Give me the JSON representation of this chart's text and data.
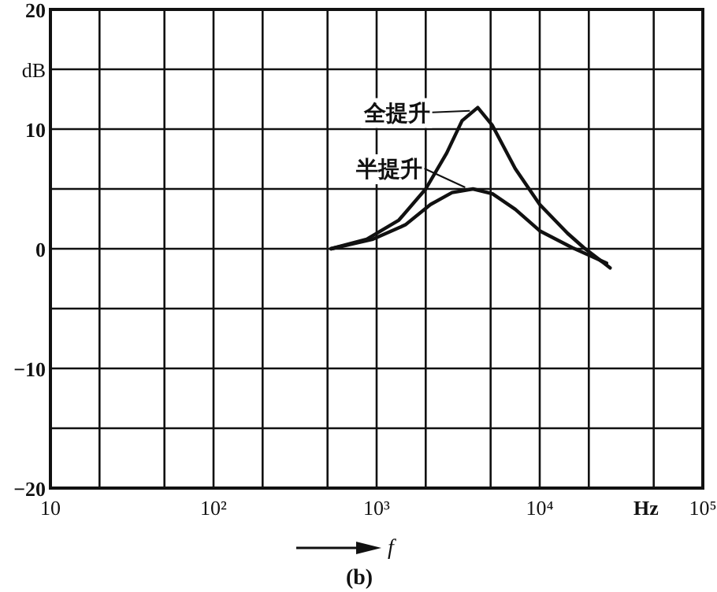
{
  "chart_data": {
    "type": "line",
    "ylabel": "dB",
    "xlabel": "Hz",
    "log": "x",
    "grid": true,
    "legend": "top",
    "line_style": "solid",
    "xlim": [
      10,
      100000
    ],
    "ylim": [
      -20,
      20
    ],
    "xticks": [
      {
        "value": 10,
        "label": "10"
      },
      {
        "value": 20,
        "label": null
      },
      {
        "value": 50,
        "label": null
      },
      {
        "value": 100,
        "label": "10²"
      },
      {
        "value": 200,
        "label": null
      },
      {
        "value": 500,
        "label": null
      },
      {
        "value": 1000,
        "label": "10³"
      },
      {
        "value": 2000,
        "label": null
      },
      {
        "value": 5000,
        "label": null
      },
      {
        "value": 10000,
        "label": "10⁴"
      },
      {
        "value": 20000,
        "label": null
      },
      {
        "value": 50000,
        "label": null
      },
      {
        "value": 100000,
        "label": "10⁵"
      }
    ],
    "yticks": [
      {
        "value": -20,
        "label": "−20"
      },
      {
        "value": -15,
        "label": null
      },
      {
        "value": -10,
        "label": "−10"
      },
      {
        "value": -5,
        "label": null
      },
      0,
      {
        "value": 5,
        "label": null
      },
      10,
      {
        "value": 15,
        "label": null
      },
      20
    ],
    "series": [
      {
        "name": "全提升",
        "color": "#111111",
        "x": [
          525,
          870,
          1370,
          2000,
          2690,
          3340,
          4170,
          5130,
          7080,
          10000,
          14800,
          18600,
          27000
        ],
        "values": [
          0,
          0.8,
          2.4,
          5.0,
          8.0,
          10.7,
          11.8,
          10.3,
          6.7,
          3.7,
          1.3,
          0.1,
          -1.6
        ]
      },
      {
        "name": "半提升",
        "color": "#111111",
        "x": [
          525,
          950,
          1500,
          2140,
          2900,
          3900,
          5130,
          7080,
          10000,
          15800,
          25700
        ],
        "values": [
          0,
          0.8,
          2.0,
          3.7,
          4.7,
          5.0,
          4.6,
          3.3,
          1.5,
          0.1,
          -1.2
        ]
      }
    ],
    "annotations": [
      "f",
      "(b)"
    ]
  }
}
